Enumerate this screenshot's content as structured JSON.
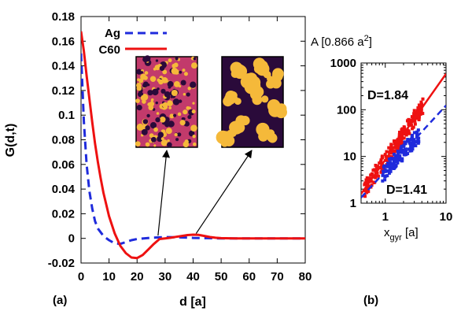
{
  "colors": {
    "ag": "#1f2bdc",
    "c60": "#ee1111",
    "axis": "#000000",
    "inset_dark": "#2a0a3a",
    "inset_mid": "#c23a6b",
    "inset_light": "#f5b93a"
  },
  "chart_data": [
    {
      "panel": "(a)",
      "type": "line",
      "xlabel": "d [a]",
      "ylabel": "G(d,t)",
      "xlim": [
        0,
        80
      ],
      "ylim": [
        -0.02,
        0.18
      ],
      "xticks": [
        0,
        10,
        20,
        30,
        40,
        50,
        60,
        70,
        80
      ],
      "yticks": [
        "-0.02",
        "0",
        "0.02",
        "0.04",
        "0.06",
        "0.08",
        "0.1",
        "0.12",
        "0.14",
        "0.16",
        "0.18"
      ],
      "series": [
        {
          "name": "Ag",
          "style": "dashed",
          "x": [
            0,
            1,
            2,
            3,
            4,
            5,
            6,
            8,
            10,
            12,
            14,
            16,
            18,
            20,
            25,
            30,
            35,
            40,
            45,
            50,
            60,
            70,
            80
          ],
          "y": [
            0.15,
            0.095,
            0.06,
            0.038,
            0.024,
            0.014,
            0.008,
            0.002,
            -0.0015,
            -0.004,
            -0.0045,
            -0.003,
            -0.0015,
            -0.0005,
            0.0005,
            0.001,
            0.0008,
            0.0004,
            0.0002,
            0.0,
            0.0,
            0.0,
            0.0
          ]
        },
        {
          "name": "C60",
          "style": "solid",
          "x": [
            0,
            1,
            2,
            3,
            4,
            5,
            6,
            7,
            8,
            10,
            12,
            14,
            16,
            18,
            20,
            22,
            24,
            26,
            28,
            30,
            32,
            34,
            36,
            38,
            40,
            42,
            44,
            46,
            48,
            50,
            55,
            60,
            65,
            70,
            80
          ],
          "y": [
            0.168,
            0.152,
            0.132,
            0.113,
            0.094,
            0.077,
            0.062,
            0.049,
            0.037,
            0.018,
            0.004,
            -0.006,
            -0.012,
            -0.0155,
            -0.016,
            -0.0135,
            -0.009,
            -0.0045,
            -0.0005,
            0.0,
            0.0005,
            0.0013,
            0.002,
            0.0027,
            0.003,
            0.0028,
            0.002,
            0.0011,
            0.0005,
            0.0002,
            0.0,
            0.0,
            0.0,
            0.0,
            0.0
          ]
        }
      ],
      "legend": [
        "Ag",
        "C60"
      ],
      "legend_position": "top-left",
      "insets": [
        {
          "name": "Ag morphology",
          "arrow_target_d": 30
        },
        {
          "name": "C60 morphology",
          "arrow_target_d": 45
        }
      ]
    },
    {
      "panel": "(b)",
      "type": "scatter",
      "title": "A [0.866 a²]",
      "title_base": "A [0.866 a",
      "title_sup": "2",
      "title_end": "]",
      "xlabel_base": "x",
      "xlabel_sub": "gyr",
      "xlabel_end": " [a]",
      "xscale": "log",
      "yscale": "log",
      "xlim": [
        0.4,
        10
      ],
      "ylim": [
        1,
        1000
      ],
      "xticks": [
        "1",
        "10"
      ],
      "yticks": [
        "1",
        "10",
        "100",
        "1000"
      ],
      "annotations": [
        "D=1.84",
        "D=1.41"
      ],
      "fit_lines": [
        {
          "name": "C60 fit",
          "slope": 1.84,
          "intercept": 8.5,
          "style": "solid"
        },
        {
          "name": "Ag fit",
          "slope": 1.41,
          "intercept": 4.8,
          "style": "dashed"
        }
      ],
      "series": [
        {
          "name": "C60",
          "x_range": [
            0.45,
            4.2
          ],
          "slope": 1.84,
          "intercept": 8.5
        },
        {
          "name": "Ag",
          "x_range": [
            0.9,
            3.6
          ],
          "slope": 1.41,
          "intercept": 4.8
        }
      ]
    }
  ],
  "panel_labels": {
    "a": "(a)",
    "b": "(b)"
  }
}
